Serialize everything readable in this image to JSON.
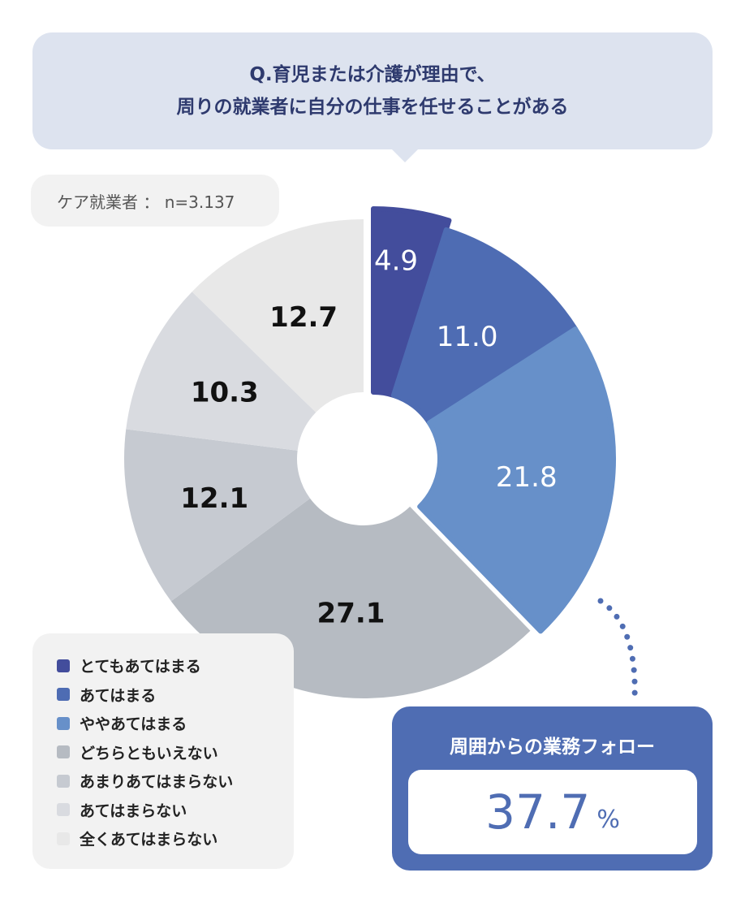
{
  "question": {
    "line1": "Q.育児または介護が理由で、",
    "line2": "周りの就業者に自分の仕事を任せることがある"
  },
  "sample": "ケア就業者 ： n=3.137",
  "chart_data": {
    "type": "pie",
    "title": "Q.育児または介護が理由で、周りの就業者に自分の仕事を任せることがある",
    "categories": [
      "とてもあてはまる",
      "あてはまる",
      "ややあてはまる",
      "どちらともいえない",
      "あまりあてはまらない",
      "あてはまらない",
      "全くあてはまらない"
    ],
    "values": [
      4.9,
      11.0,
      21.8,
      27.1,
      12.1,
      10.3,
      12.7
    ],
    "labels": [
      "4.9",
      "11.0",
      "21.8",
      "27.1",
      "12.1",
      "10.3",
      "12.7"
    ],
    "colors": [
      "#434d9c",
      "#4e6cb3",
      "#6790c9",
      "#b6bbc2",
      "#c6cad1",
      "#d9dbe0",
      "#e8e8e8"
    ],
    "highlighted": [
      0,
      1,
      2
    ],
    "legend": "bottom-left"
  },
  "callout": {
    "title": "周囲からの業務フォロー",
    "value": "37.7",
    "unit": "%"
  }
}
